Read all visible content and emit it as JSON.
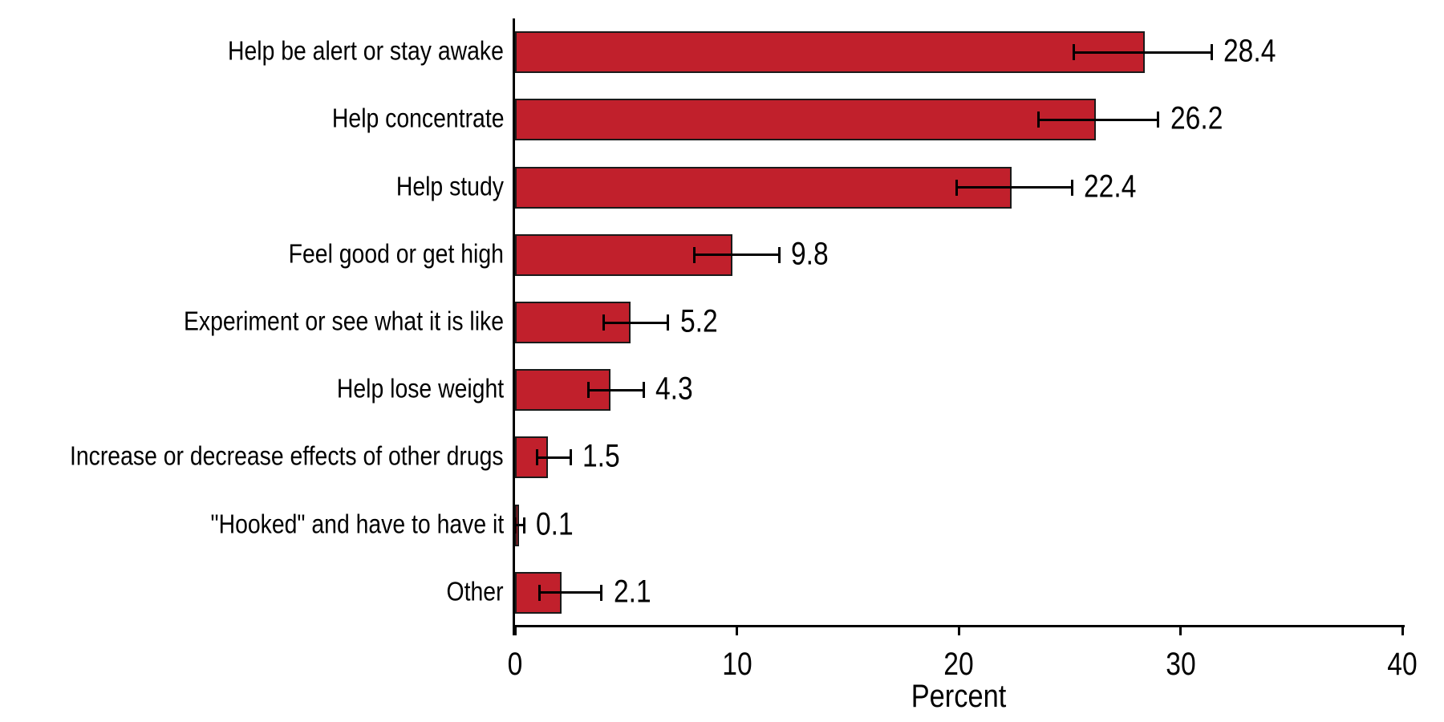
{
  "chart_data": {
    "type": "bar",
    "orientation": "horizontal",
    "title": "",
    "xlabel": "Percent",
    "ylabel": "",
    "xlim": [
      0,
      40
    ],
    "x_ticks": [
      0,
      10,
      20,
      30,
      40
    ],
    "x_tick_labels": [
      "0",
      "10",
      "20",
      "30",
      "40"
    ],
    "grid": false,
    "bar_color": "#C1202C",
    "bar_border_color": "#1A1A1A",
    "axis_color": "#000000",
    "error_bars": true,
    "categories": [
      "Help be alert or stay awake",
      "Help concentrate",
      "Help study",
      "Feel good or get high",
      "Experiment or see what it is like",
      "Help lose weight",
      "Increase or decrease effects of other drugs",
      "\"Hooked\" and have to have it",
      "Other"
    ],
    "values": [
      28.4,
      26.2,
      22.4,
      9.8,
      5.2,
      4.3,
      1.5,
      0.1,
      2.1
    ],
    "value_labels": [
      "28.4",
      "26.2",
      "22.4",
      "9.8",
      "5.2",
      "4.3",
      "1.5",
      "0.1",
      "2.1"
    ],
    "error_low": [
      25.2,
      23.6,
      19.9,
      8.1,
      4.0,
      3.3,
      1.0,
      0.0,
      1.1
    ],
    "error_high": [
      31.4,
      29.0,
      25.1,
      11.9,
      6.9,
      5.8,
      2.5,
      0.4,
      3.9
    ]
  }
}
